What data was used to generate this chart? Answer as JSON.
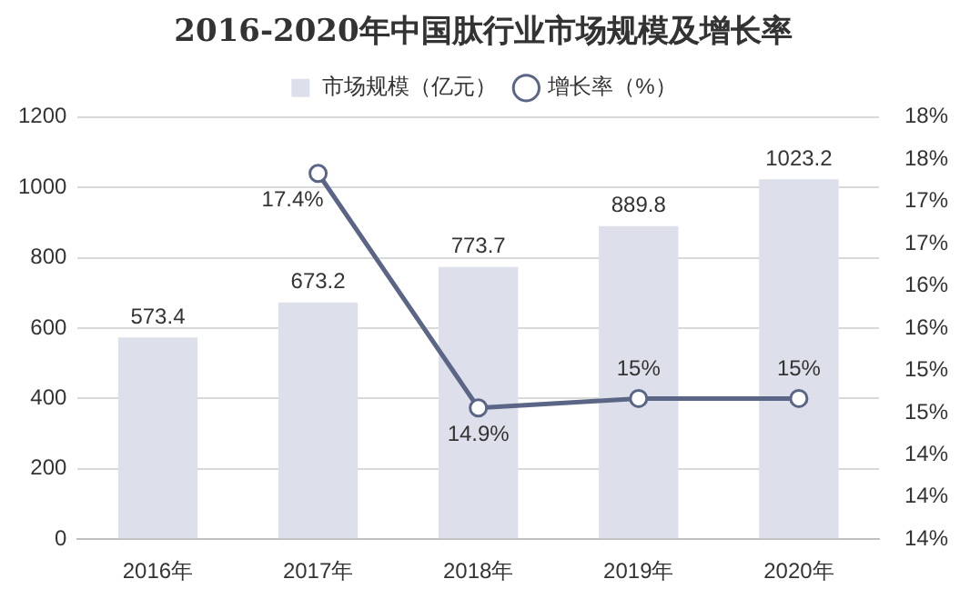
{
  "chart_data": {
    "type": "bar",
    "title": "2016-2020年中国肽行业市场规模及增长率",
    "categories": [
      "2016年",
      "2017年",
      "2018年",
      "2019年",
      "2020年"
    ],
    "series": [
      {
        "name": "市场规模（亿元）",
        "color": "#dde0ea",
        "values": [
          573.4,
          673.2,
          773.7,
          889.8,
          1023.2
        ],
        "value_labels": [
          "573.4",
          "673.2",
          "773.7",
          "889.8",
          "1023.2"
        ]
      },
      {
        "name": "增长率（%）",
        "type": "line",
        "axis": "y2",
        "color": "#5b6586",
        "values": [
          null,
          17.4,
          14.9,
          15,
          15
        ],
        "value_labels": [
          null,
          "17.4%",
          "14.9%",
          "15%",
          "15%"
        ]
      }
    ],
    "ylim": [
      0,
      1200
    ],
    "yticks": [
      0,
      200,
      400,
      600,
      800,
      1000,
      1200
    ],
    "y2lim": [
      13.5,
      18
    ],
    "y2ticks": [
      {
        "value": 13.5,
        "label": "14%"
      },
      {
        "value": 13.95,
        "label": "14%"
      },
      {
        "value": 14.4,
        "label": "14%"
      },
      {
        "value": 14.85,
        "label": "15%"
      },
      {
        "value": 15.3,
        "label": "15%"
      },
      {
        "value": 15.75,
        "label": "16%"
      },
      {
        "value": 16.2,
        "label": "16%"
      },
      {
        "value": 16.65,
        "label": "17%"
      },
      {
        "value": 17.1,
        "label": "17%"
      },
      {
        "value": 17.55,
        "label": "18%"
      },
      {
        "value": 18,
        "label": "18%"
      }
    ],
    "grid": "y",
    "legend": "top",
    "marker": "circle",
    "line_style": "solid"
  }
}
